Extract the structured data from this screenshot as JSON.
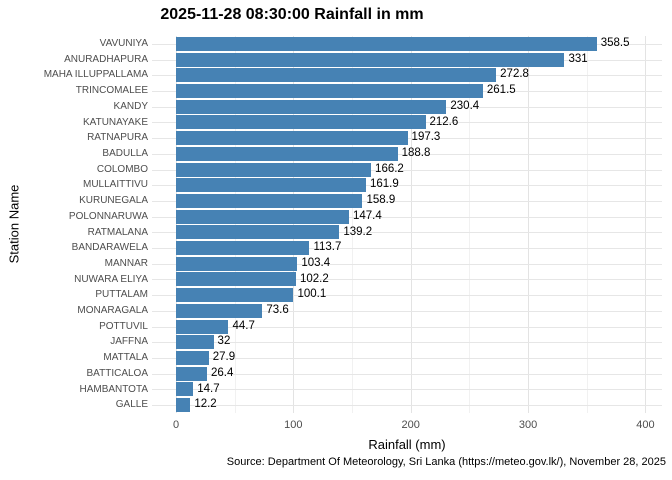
{
  "chart_data": {
    "type": "bar",
    "orientation": "horizontal",
    "title": "2025-11-28 08:30:00 Rainfall in mm",
    "xlabel": "Rainfall (mm)",
    "ylabel": "Station Name",
    "caption": "Source: Department Of Meteorology, Sri Lanka (https://meteo.gov.lk/), November 28, 2025",
    "categories": [
      "VAVUNIYA",
      "ANURADHAPURA",
      "MAHA ILLUPPALLAMA",
      "TRINCOMALEE",
      "KANDY",
      "KATUNAYAKE",
      "RATNAPURA",
      "BADULLA",
      "COLOMBO",
      "MULLAITTIVU",
      "KURUNEGALA",
      "POLONNARUWA",
      "RATMALANA",
      "BANDARAWELA",
      "MANNAR",
      "NUWARA ELIYA",
      "PUTTALAM",
      "MONARAGALA",
      "POTTUVIL",
      "JAFFNA",
      "MATTALA",
      "BATTICALOA",
      "HAMBANTOTA",
      "GALLE"
    ],
    "values": [
      358.5,
      331,
      272.8,
      261.5,
      230.4,
      212.6,
      197.3,
      188.8,
      166.2,
      161.9,
      158.9,
      147.4,
      139.2,
      113.7,
      103.4,
      102.2,
      100.1,
      73.6,
      44.7,
      32,
      27.9,
      26.4,
      14.7,
      12.2
    ],
    "x_ticks": [
      0,
      100,
      200,
      300,
      400
    ],
    "x_minor_ticks": [
      50,
      150,
      250,
      350
    ],
    "xlim": [
      0,
      400
    ],
    "bar_color": "#4682b4",
    "grid": true,
    "legend": false,
    "value_labels": true,
    "axis_text_color": "#4d4d4d",
    "grid_major_color": "#e3e3e3",
    "grid_minor_color": "#f1f1f1"
  }
}
